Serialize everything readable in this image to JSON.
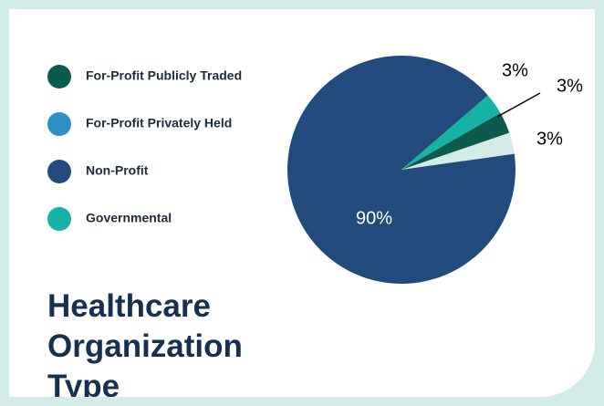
{
  "chart_data": {
    "type": "pie",
    "title": "Healthcare Organization Type",
    "categories": [
      "For-Profit Publicly Traded",
      "For-Profit Privately Held",
      "Non-Profit",
      "Governmental"
    ],
    "values": [
      3,
      3,
      90,
      3
    ],
    "value_labels": [
      "3%",
      "3%",
      "90%",
      "3%"
    ],
    "colors": [
      "#0d5a4c",
      "#d3ece8",
      "#234a7c",
      "#16b2a5"
    ],
    "legend_colors": [
      "#0d5a4c",
      "#2f8fc1",
      "#234a7c",
      "#16b2a5"
    ],
    "legend": "top-left"
  }
}
